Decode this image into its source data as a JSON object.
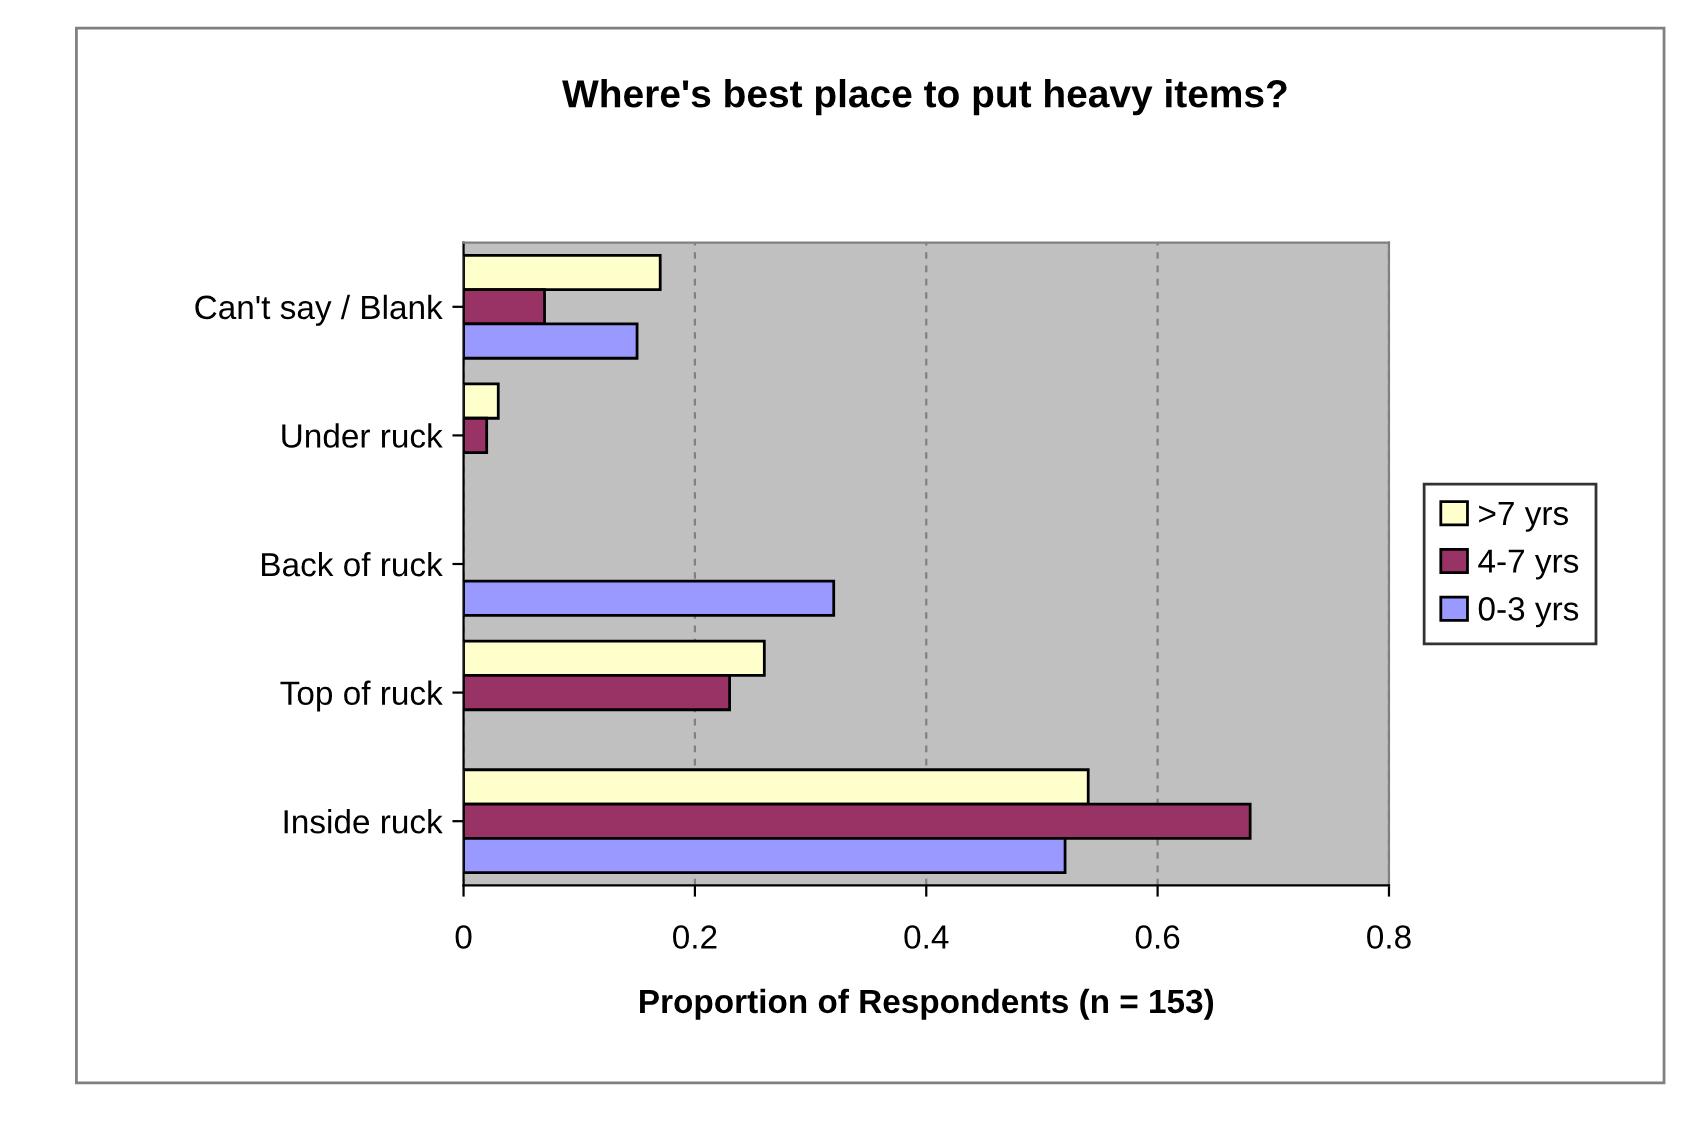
{
  "chart_data": {
    "type": "bar",
    "orientation": "horizontal",
    "title": "Where's best place to put heavy items?",
    "xlabel": "Proportion of Respondents (n = 153)",
    "categories": [
      "Can't say / Blank",
      "Under ruck",
      "Back of ruck",
      "Top of ruck",
      "Inside ruck"
    ],
    "series": [
      {
        "name": ">7 yrs",
        "color": "#ffffcc",
        "values": [
          0.17,
          0.03,
          null,
          0.26,
          0.54
        ]
      },
      {
        "name": "4-7 yrs",
        "color": "#993366",
        "values": [
          0.07,
          0.02,
          null,
          0.23,
          0.68
        ]
      },
      {
        "name": "0-3 yrs",
        "color": "#9999ff",
        "values": [
          0.15,
          null,
          0.32,
          null,
          0.52
        ]
      }
    ],
    "xlim": [
      0,
      0.8
    ],
    "xticks": [
      0,
      0.2,
      0.4,
      0.6,
      0.8
    ],
    "grid": "x",
    "legend": "right"
  }
}
